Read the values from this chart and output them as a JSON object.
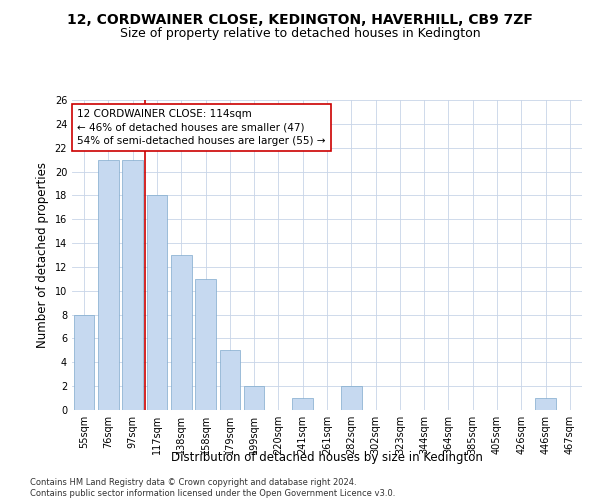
{
  "title": "12, CORDWAINER CLOSE, KEDINGTON, HAVERHILL, CB9 7ZF",
  "subtitle": "Size of property relative to detached houses in Kedington",
  "xlabel": "Distribution of detached houses by size in Kedington",
  "ylabel": "Number of detached properties",
  "categories": [
    "55sqm",
    "76sqm",
    "97sqm",
    "117sqm",
    "138sqm",
    "158sqm",
    "179sqm",
    "199sqm",
    "220sqm",
    "241sqm",
    "261sqm",
    "282sqm",
    "302sqm",
    "323sqm",
    "344sqm",
    "364sqm",
    "385sqm",
    "405sqm",
    "426sqm",
    "446sqm",
    "467sqm"
  ],
  "values": [
    8,
    21,
    21,
    18,
    13,
    11,
    5,
    2,
    0,
    1,
    0,
    2,
    0,
    0,
    0,
    0,
    0,
    0,
    0,
    1,
    0
  ],
  "bar_color": "#c6d9f0",
  "bar_edge_color": "#7faacc",
  "vline_x": 2.5,
  "vline_color": "#cc0000",
  "annotation_line1": "12 CORDWAINER CLOSE: 114sqm",
  "annotation_line2": "← 46% of detached houses are smaller (47)",
  "annotation_line3": "54% of semi-detached houses are larger (55) →",
  "annotation_box_color": "white",
  "annotation_box_edge_color": "#cc0000",
  "ylim": [
    0,
    26
  ],
  "yticks": [
    0,
    2,
    4,
    6,
    8,
    10,
    12,
    14,
    16,
    18,
    20,
    22,
    24,
    26
  ],
  "grid_color": "#c8d4e8",
  "background_color": "white",
  "footer": "Contains HM Land Registry data © Crown copyright and database right 2024.\nContains public sector information licensed under the Open Government Licence v3.0.",
  "title_fontsize": 10,
  "subtitle_fontsize": 9,
  "xlabel_fontsize": 8.5,
  "ylabel_fontsize": 8.5,
  "tick_fontsize": 7,
  "annotation_fontsize": 7.5,
  "footer_fontsize": 6
}
